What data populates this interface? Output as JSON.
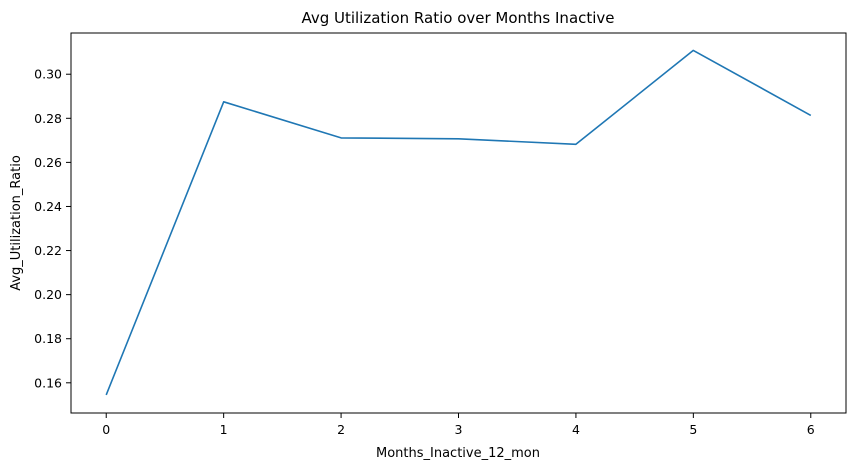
{
  "chart_data": {
    "type": "line",
    "title": "Avg Utilization Ratio over Months Inactive",
    "xlabel": "Months_Inactive_12_mon",
    "ylabel": "Avg_Utilization_Ratio",
    "x": [
      0,
      1,
      2,
      3,
      4,
      5,
      6
    ],
    "xticks": [
      "0",
      "1",
      "2",
      "3",
      "4",
      "5",
      "6"
    ],
    "yticks": [
      "0.16",
      "0.18",
      "0.20",
      "0.22",
      "0.24",
      "0.26",
      "0.28",
      "0.30"
    ],
    "ytick_values": [
      0.16,
      0.18,
      0.2,
      0.22,
      0.24,
      0.26,
      0.28,
      0.3
    ],
    "xlim": [
      -0.3,
      6.3
    ],
    "ylim": [
      0.1463,
      0.3187
    ],
    "grid": false,
    "series": [
      {
        "color": "#1f77b4",
        "values": [
          0.1545,
          0.2875,
          0.2711,
          0.2707,
          0.2682,
          0.3108,
          0.2813
        ]
      }
    ]
  }
}
